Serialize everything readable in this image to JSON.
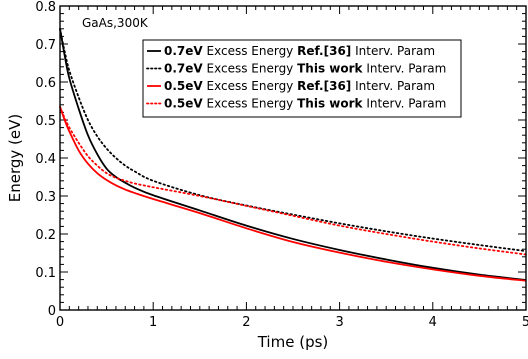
{
  "chart_data": {
    "type": "line",
    "annotation": "GaAs,300K",
    "xlabel": "Time (ps)",
    "ylabel": "Energy (eV)",
    "xlim": [
      0,
      5
    ],
    "ylim": [
      0,
      0.8
    ],
    "x_ticks": [
      "0",
      "1",
      "2",
      "3",
      "4",
      "5"
    ],
    "y_ticks": [
      "0",
      "0.1",
      "0.2",
      "0.3",
      "0.4",
      "0.5",
      "0.6",
      "0.7",
      "0.8"
    ],
    "legend_position": "top-right",
    "series": [
      {
        "legend": [
          {
            "t": "0.7eV",
            "b": true
          },
          {
            "t": " Excess Energy ",
            "b": false
          },
          {
            "t": "Ref.[36]",
            "b": true
          },
          {
            "t": " Interv. Param",
            "b": false
          }
        ],
        "color": "#000000",
        "dash": "solid",
        "x": [
          0,
          0.05,
          0.1,
          0.2,
          0.3,
          0.4,
          0.5,
          0.6,
          0.7,
          0.8,
          1.0,
          1.5,
          2.0,
          2.5,
          3.0,
          3.5,
          4.0,
          4.5,
          5.0
        ],
        "y": [
          0.74,
          0.67,
          0.61,
          0.53,
          0.46,
          0.41,
          0.372,
          0.35,
          0.335,
          0.322,
          0.302,
          0.262,
          0.222,
          0.187,
          0.158,
          0.133,
          0.111,
          0.093,
          0.079
        ]
      },
      {
        "legend": [
          {
            "t": "0.7eV",
            "b": true
          },
          {
            "t": " Excess Energy ",
            "b": false
          },
          {
            "t": "This work",
            "b": true
          },
          {
            "t": " Interv. Param",
            "b": false
          }
        ],
        "color": "#000000",
        "dash": "dotted",
        "x": [
          0,
          0.05,
          0.1,
          0.2,
          0.3,
          0.4,
          0.5,
          0.6,
          0.7,
          0.8,
          1.0,
          1.5,
          2.0,
          2.5,
          3.0,
          3.5,
          4.0,
          4.5,
          5.0
        ],
        "y": [
          0.74,
          0.68,
          0.63,
          0.56,
          0.5,
          0.457,
          0.425,
          0.4,
          0.38,
          0.365,
          0.34,
          0.302,
          0.275,
          0.251,
          0.228,
          0.207,
          0.188,
          0.171,
          0.155
        ]
      },
      {
        "legend": [
          {
            "t": "0.5eV",
            "b": true
          },
          {
            "t": " Excess Energy ",
            "b": false
          },
          {
            "t": "Ref.[36]",
            "b": true
          },
          {
            "t": " Interv. Param",
            "b": false
          }
        ],
        "color": "#ff0000",
        "dash": "solid",
        "x": [
          0,
          0.05,
          0.1,
          0.2,
          0.3,
          0.4,
          0.5,
          0.6,
          0.7,
          0.8,
          1.0,
          1.5,
          2.0,
          2.5,
          3.0,
          3.5,
          4.0,
          4.5,
          5.0
        ],
        "y": [
          0.535,
          0.5,
          0.47,
          0.42,
          0.385,
          0.36,
          0.342,
          0.328,
          0.317,
          0.308,
          0.292,
          0.255,
          0.215,
          0.179,
          0.151,
          0.127,
          0.107,
          0.09,
          0.077
        ]
      },
      {
        "legend": [
          {
            "t": "0.5eV",
            "b": true
          },
          {
            "t": " Excess Energy ",
            "b": false
          },
          {
            "t": "This work",
            "b": true
          },
          {
            "t": " Interv. Param",
            "b": false
          }
        ],
        "color": "#ff0000",
        "dash": "dotted",
        "x": [
          0,
          0.05,
          0.1,
          0.2,
          0.3,
          0.4,
          0.5,
          0.6,
          0.7,
          0.8,
          1.0,
          1.5,
          2.0,
          2.5,
          3.0,
          3.5,
          4.0,
          4.5,
          5.0
        ],
        "y": [
          0.535,
          0.505,
          0.48,
          0.44,
          0.405,
          0.38,
          0.36,
          0.348,
          0.34,
          0.333,
          0.323,
          0.3,
          0.274,
          0.248,
          0.222,
          0.2,
          0.18,
          0.162,
          0.146
        ]
      }
    ]
  }
}
